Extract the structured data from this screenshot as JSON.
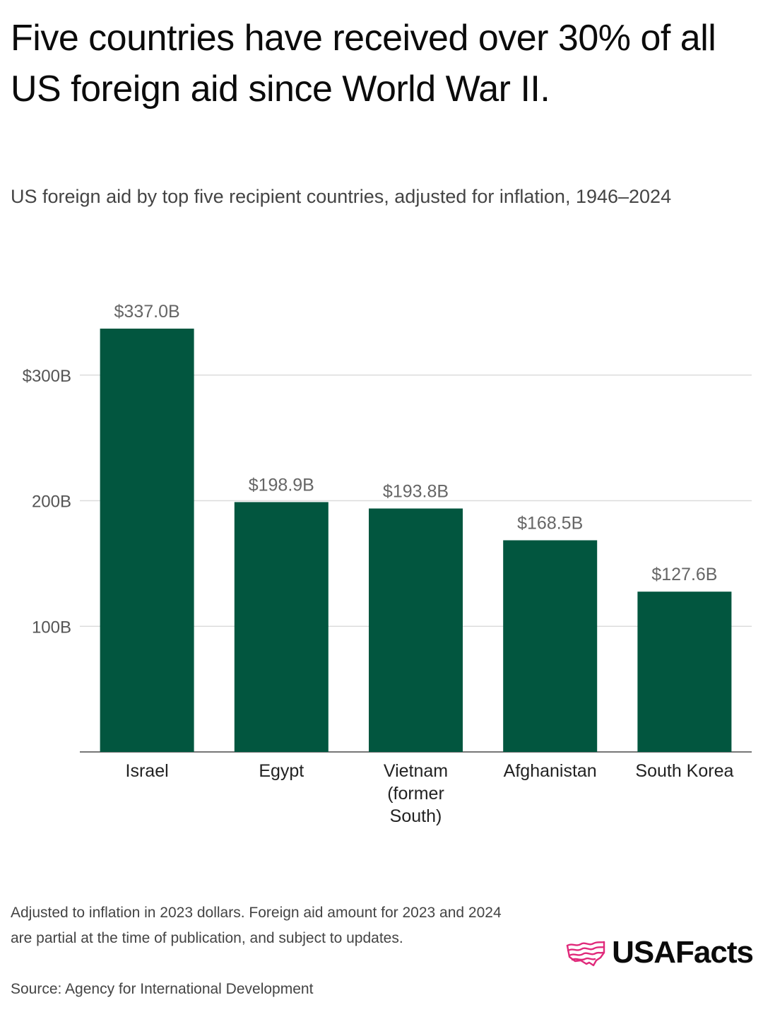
{
  "title": "Five countries have received over 30% of all US foreign aid since World War II.",
  "subtitle": "US foreign aid by top five recipient countries, adjusted for inflation, 1946–2024",
  "footnote": "Adjusted to inflation in 2023 dollars. Foreign aid amount for 2023 and 2024 are partial at the time of publication, and subject to updates.",
  "source": "Source: Agency for International Development",
  "logo": {
    "text": "USAFacts",
    "icon": "us-map-stripes-icon",
    "color": "#e0297a"
  },
  "chart_data": {
    "type": "bar",
    "categories": [
      "Israel",
      "Egypt",
      "Vietnam (former South)",
      "Afghanistan",
      "South Korea"
    ],
    "category_lines": [
      [
        "Israel"
      ],
      [
        "Egypt"
      ],
      [
        "Vietnam",
        "(former",
        "South)"
      ],
      [
        "Afghanistan"
      ],
      [
        "South Korea"
      ]
    ],
    "values": [
      337.0,
      198.9,
      193.8,
      168.5,
      127.6
    ],
    "value_labels": [
      "$337.0B",
      "$198.9B",
      "$193.8B",
      "$168.5B",
      "$127.6B"
    ],
    "unit": "billion USD (2023 dollars)",
    "ylim": [
      0,
      337.0
    ],
    "yticks": [
      100,
      200,
      300
    ],
    "ytick_labels": [
      "100B",
      "200B",
      "$300B"
    ],
    "grid": true,
    "bar_color": "#02563f",
    "grid_color": "#dcdcdc",
    "axis_color": "#777777"
  }
}
